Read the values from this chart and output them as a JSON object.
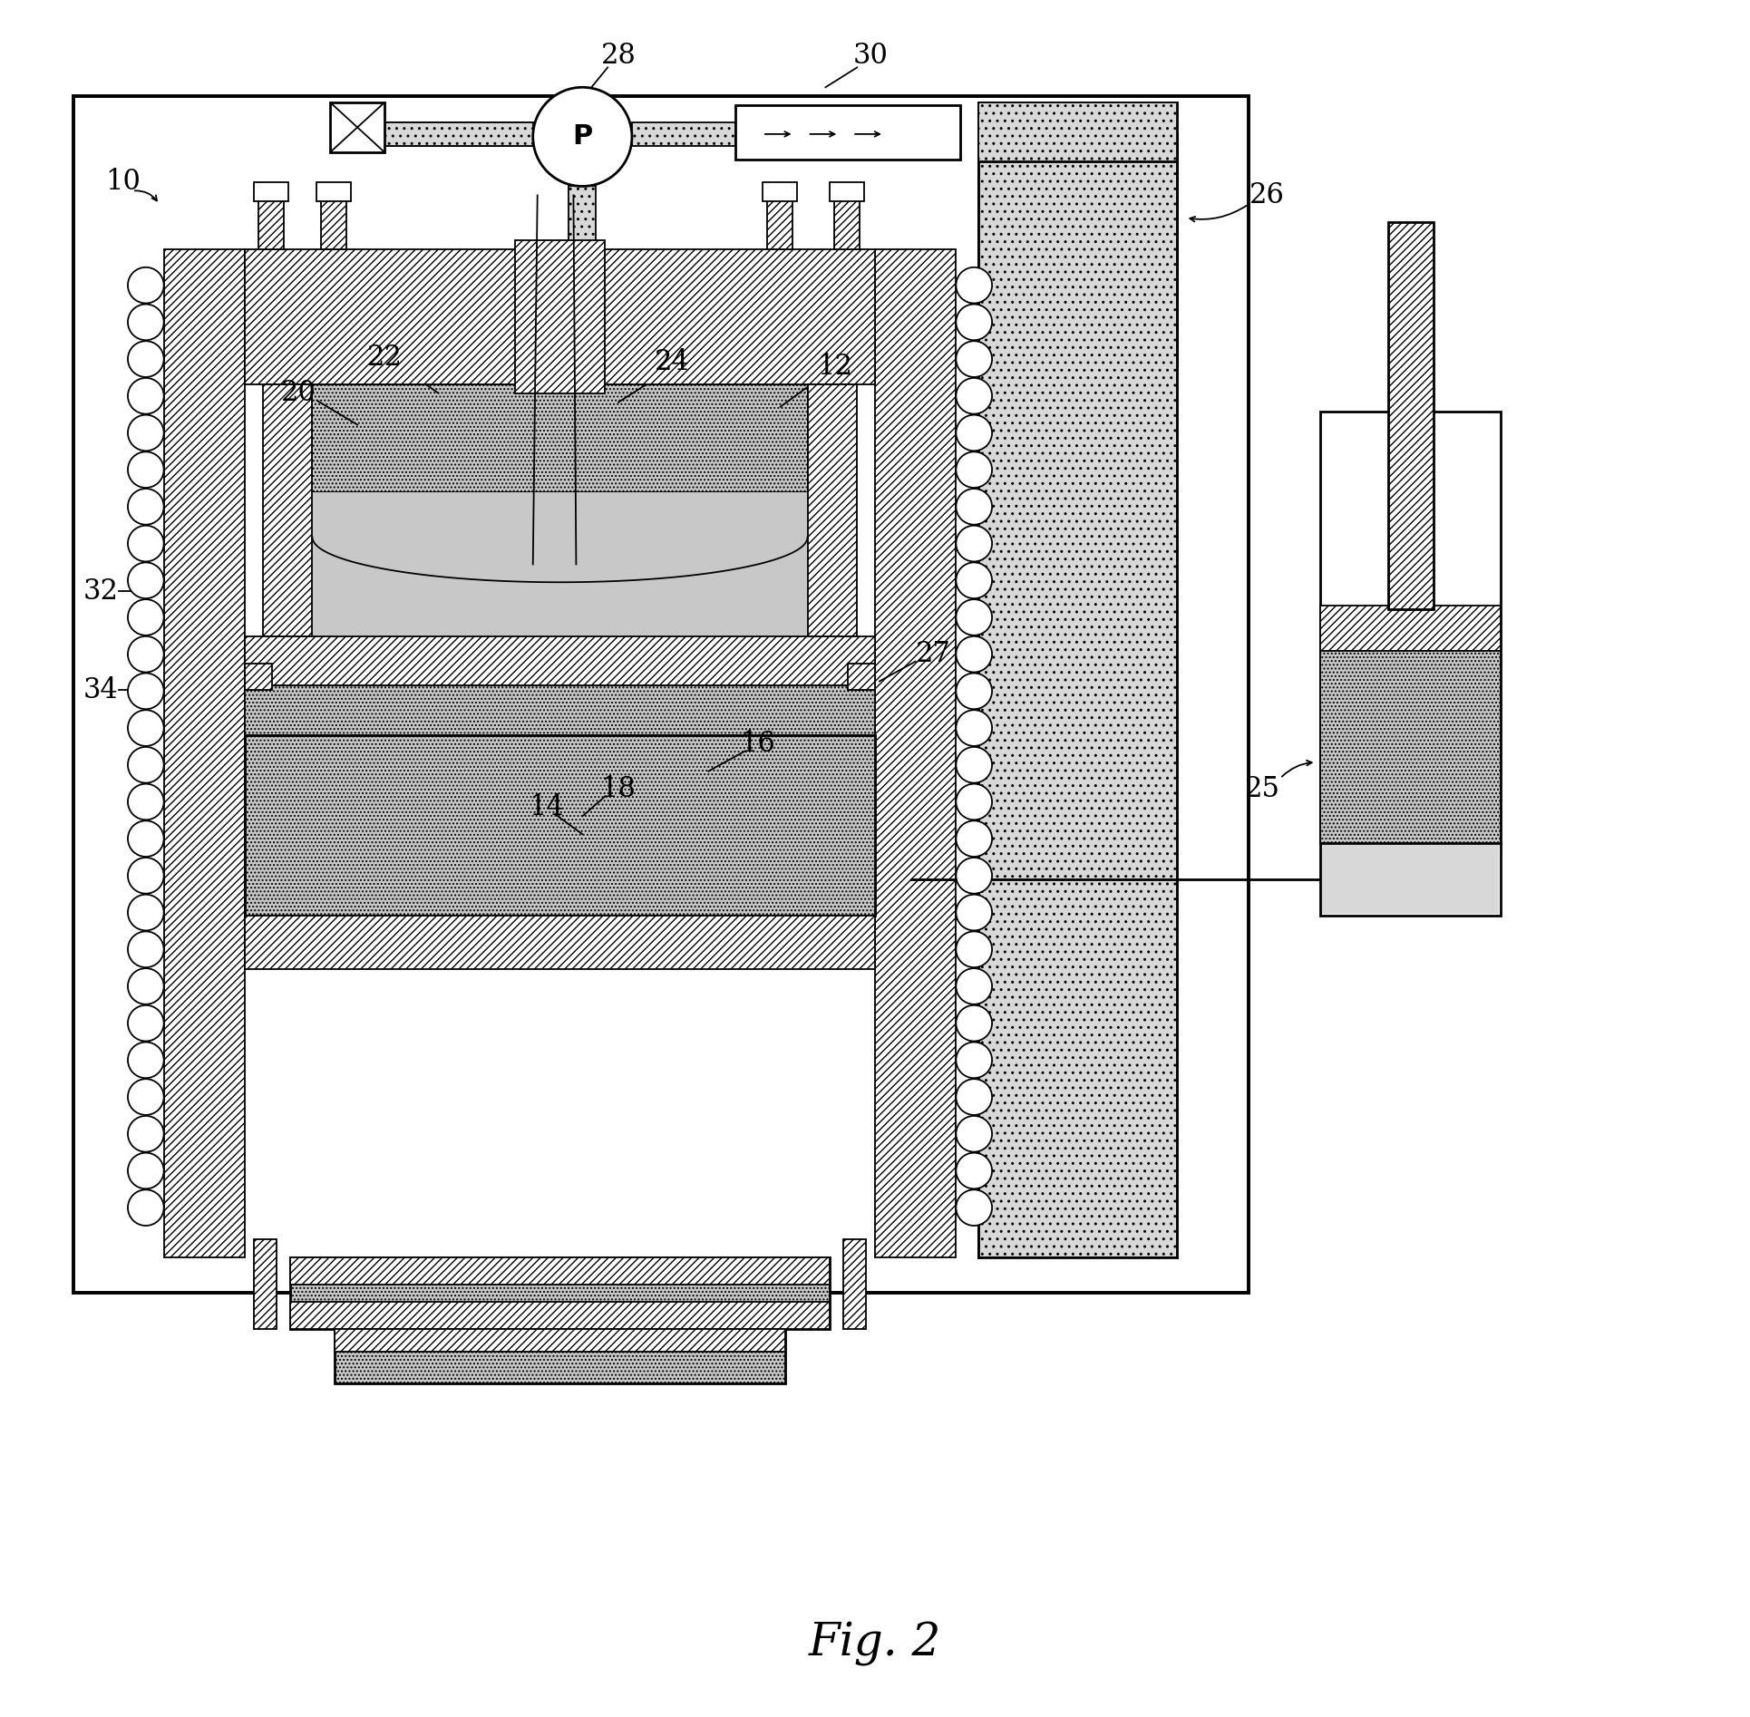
{
  "fig_label": "Fig. 2",
  "bg_color": "#ffffff",
  "lc": "#000000",
  "hatch_gray": "#d8d8d8",
  "dot_gray": "#c8c8c8",
  "dark_gray": "#aaaaaa"
}
